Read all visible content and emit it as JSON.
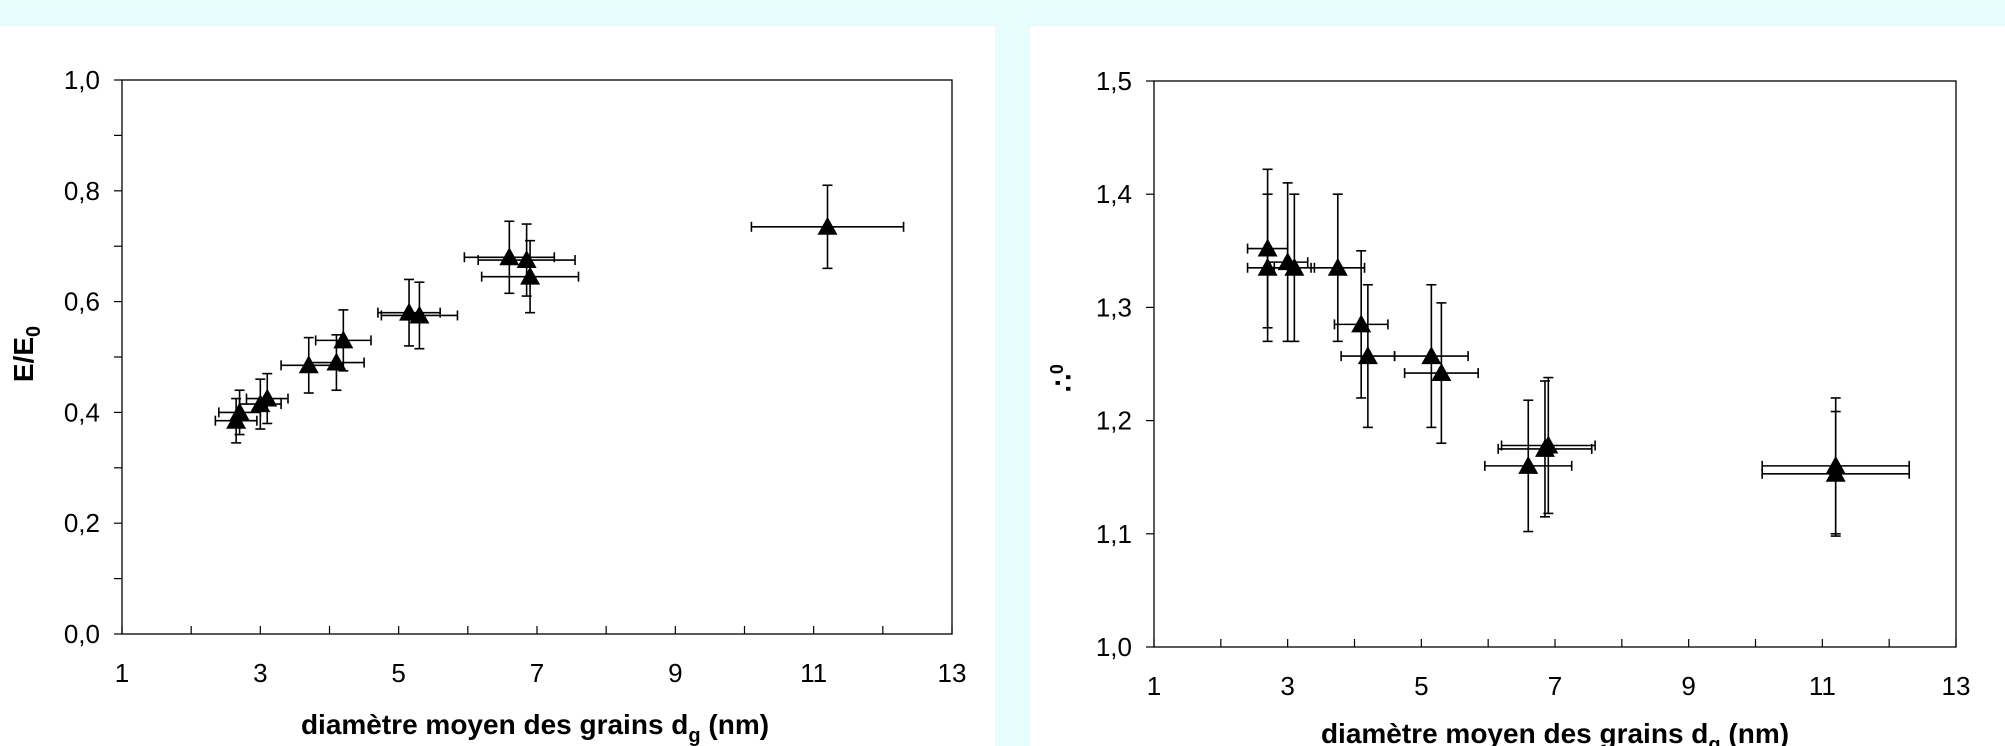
{
  "chart_data": [
    {
      "type": "scatter",
      "xlabel": "diamètre moyen des grains d",
      "xlabel_sub": "g",
      "xlabel_tail": " (nm)",
      "ylabel": "E/E",
      "ylabel_sub": "0",
      "xlim": [
        1,
        13
      ],
      "ylim": [
        0.0,
        1.0
      ],
      "x_ticks": [
        1,
        3,
        5,
        7,
        9,
        11,
        13
      ],
      "x_tick_labels": [
        "1",
        "3",
        "5",
        "7",
        "9",
        "11",
        "13"
      ],
      "x_minor_ticks": [
        2,
        4,
        6,
        8,
        10,
        12
      ],
      "y_ticks": [
        0.0,
        0.2,
        0.4,
        0.6,
        0.8,
        1.0
      ],
      "y_tick_labels": [
        "0,0",
        "0,2",
        "0,4",
        "0,6",
        "0,8",
        "1,0"
      ],
      "y_minor_ticks": [
        0.1,
        0.3,
        0.5,
        0.7,
        0.9
      ],
      "grid": false,
      "marker": "triangle",
      "points": [
        {
          "x": 2.65,
          "y": 0.385,
          "xerr": 0.3,
          "yerr": 0.04
        },
        {
          "x": 2.7,
          "y": 0.4,
          "xerr": 0.3,
          "yerr": 0.04
        },
        {
          "x": 3.0,
          "y": 0.415,
          "xerr": 0.3,
          "yerr": 0.045
        },
        {
          "x": 3.1,
          "y": 0.425,
          "xerr": 0.3,
          "yerr": 0.045
        },
        {
          "x": 3.7,
          "y": 0.485,
          "xerr": 0.4,
          "yerr": 0.05
        },
        {
          "x": 4.1,
          "y": 0.49,
          "xerr": 0.4,
          "yerr": 0.05
        },
        {
          "x": 4.2,
          "y": 0.53,
          "xerr": 0.4,
          "yerr": 0.055
        },
        {
          "x": 5.15,
          "y": 0.58,
          "xerr": 0.45,
          "yerr": 0.06
        },
        {
          "x": 5.3,
          "y": 0.575,
          "xerr": 0.55,
          "yerr": 0.06
        },
        {
          "x": 6.6,
          "y": 0.68,
          "xerr": 0.65,
          "yerr": 0.065
        },
        {
          "x": 6.85,
          "y": 0.675,
          "xerr": 0.7,
          "yerr": 0.065
        },
        {
          "x": 6.9,
          "y": 0.645,
          "xerr": 0.7,
          "yerr": 0.065
        },
        {
          "x": 11.2,
          "y": 0.735,
          "xerr": 1.1,
          "yerr": 0.075
        }
      ]
    },
    {
      "type": "scatter",
      "xlabel": "diamètre moyen des grains d",
      "xlabel_sub": "g",
      "xlabel_tail": " (nm)",
      "ylabel": "∴",
      "ylabel_sub": "0",
      "xlim": [
        1,
        13
      ],
      "ylim": [
        1.0,
        1.5
      ],
      "x_ticks": [
        1,
        3,
        5,
        7,
        9,
        11,
        13
      ],
      "x_tick_labels": [
        "1",
        "3",
        "5",
        "7",
        "9",
        "11",
        "13"
      ],
      "x_minor_ticks": [
        2,
        4,
        6,
        8,
        10,
        12
      ],
      "y_ticks": [
        1.0,
        1.1,
        1.2,
        1.3,
        1.4,
        1.5
      ],
      "y_tick_labels": [
        "1,0",
        "1,1",
        "1,2",
        "1,3",
        "1,4",
        "1,5"
      ],
      "y_minor_ticks": [],
      "grid": false,
      "marker": "triangle",
      "points": [
        {
          "x": 2.7,
          "y": 1.352,
          "xerr": 0.3,
          "yerr": 0.07
        },
        {
          "x": 2.7,
          "y": 1.335,
          "xerr": 0.3,
          "yerr": 0.065
        },
        {
          "x": 3.0,
          "y": 1.34,
          "xerr": 0.3,
          "yerr": 0.07
        },
        {
          "x": 3.1,
          "y": 1.335,
          "xerr": 0.3,
          "yerr": 0.065
        },
        {
          "x": 3.75,
          "y": 1.335,
          "xerr": 0.4,
          "yerr": 0.065
        },
        {
          "x": 4.1,
          "y": 1.285,
          "xerr": 0.4,
          "yerr": 0.065
        },
        {
          "x": 4.2,
          "y": 1.257,
          "xerr": 0.4,
          "yerr": 0.063
        },
        {
          "x": 5.15,
          "y": 1.257,
          "xerr": 0.55,
          "yerr": 0.063
        },
        {
          "x": 5.3,
          "y": 1.242,
          "xerr": 0.55,
          "yerr": 0.062
        },
        {
          "x": 6.6,
          "y": 1.16,
          "xerr": 0.65,
          "yerr": 0.058
        },
        {
          "x": 6.85,
          "y": 1.175,
          "xerr": 0.7,
          "yerr": 0.06
        },
        {
          "x": 6.9,
          "y": 1.178,
          "xerr": 0.7,
          "yerr": 0.06
        },
        {
          "x": 11.2,
          "y": 1.16,
          "xerr": 1.1,
          "yerr": 0.06
        },
        {
          "x": 11.2,
          "y": 1.153,
          "xerr": 1.1,
          "yerr": 0.055
        }
      ]
    }
  ]
}
